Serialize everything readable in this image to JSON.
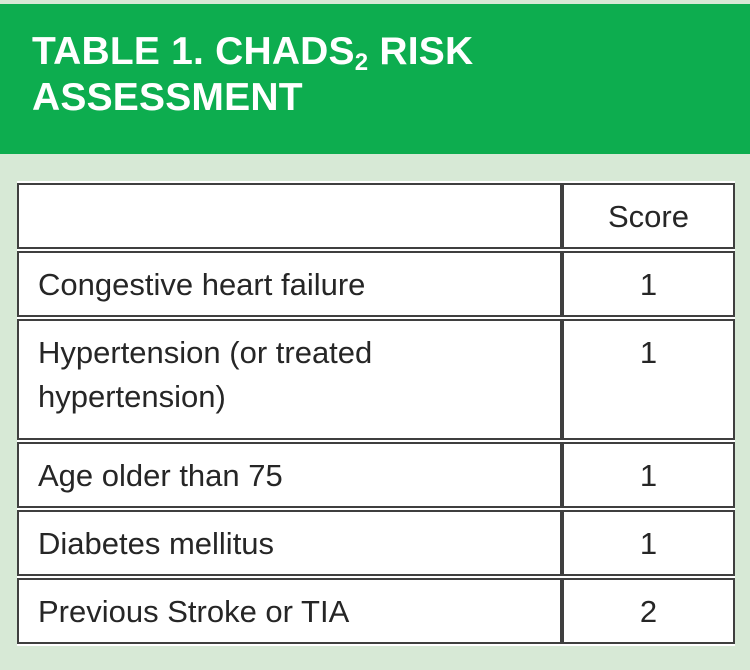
{
  "banner": {
    "title_main": "TABLE 1. CHADS",
    "title_subscript": "2",
    "title_rest": " RISK ASSESSMENT"
  },
  "chart_data": {
    "type": "table",
    "title": "TABLE 1. CHADS2 RISK ASSESSMENT",
    "columns": [
      "",
      "Score"
    ],
    "rows": [
      {
        "condition": "Congestive heart failure",
        "score": "1"
      },
      {
        "condition": "Hypertension (or treated hypertension)",
        "score": "1"
      },
      {
        "condition": "Age older than 75",
        "score": "1"
      },
      {
        "condition": "Diabetes mellitus",
        "score": "1"
      },
      {
        "condition": "Previous Stroke or TIA",
        "score": "2"
      }
    ]
  },
  "colors": {
    "banner_green": "#0dad4f",
    "page_background": "#d7e9d6",
    "cell_background": "#ffffff",
    "border": "#3f3f3f",
    "body_text": "#262626",
    "title_text": "#ffffff"
  }
}
